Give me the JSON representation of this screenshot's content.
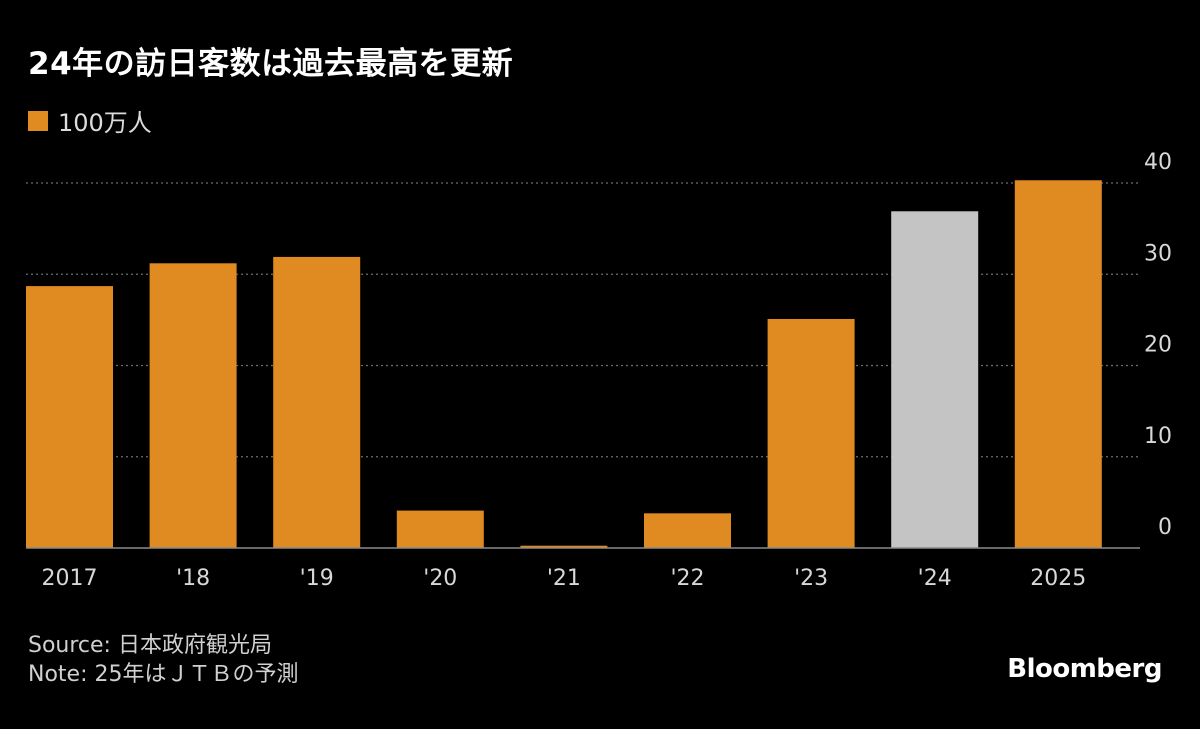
{
  "title": "24年の訪日客数は過去最高を更新",
  "legend": {
    "label": "100万人",
    "color": "#e08a22"
  },
  "chart_data": {
    "type": "bar",
    "categories": [
      "2017",
      "'18",
      "'19",
      "'20",
      "'21",
      "'22",
      "'23",
      "'24",
      "2025"
    ],
    "values": [
      28.7,
      31.2,
      31.9,
      4.1,
      0.25,
      3.8,
      25.1,
      36.9,
      40.3
    ],
    "bar_colors": [
      "#e08a22",
      "#e08a22",
      "#e08a22",
      "#e08a22",
      "#e08a22",
      "#e08a22",
      "#e08a22",
      "#c4c4c4",
      "#e08a22"
    ],
    "series": [
      {
        "name": "100万人",
        "values": [
          28.7,
          31.2,
          31.9,
          4.1,
          0.25,
          3.8,
          25.1,
          36.9,
          40.3
        ]
      }
    ],
    "ylim": [
      0,
      40
    ],
    "yticks": [
      0,
      10,
      20,
      30,
      40
    ],
    "grid": true,
    "y_axis_side": "right",
    "legend_position": "top-left",
    "title": "24年の訪日客数は過去最高を更新",
    "xlabel": "",
    "ylabel": ""
  },
  "footer": {
    "source": "Source: 日本政府観光局",
    "note": "Note: 25年はＪＴＢの予測"
  },
  "brand": "Bloomberg"
}
